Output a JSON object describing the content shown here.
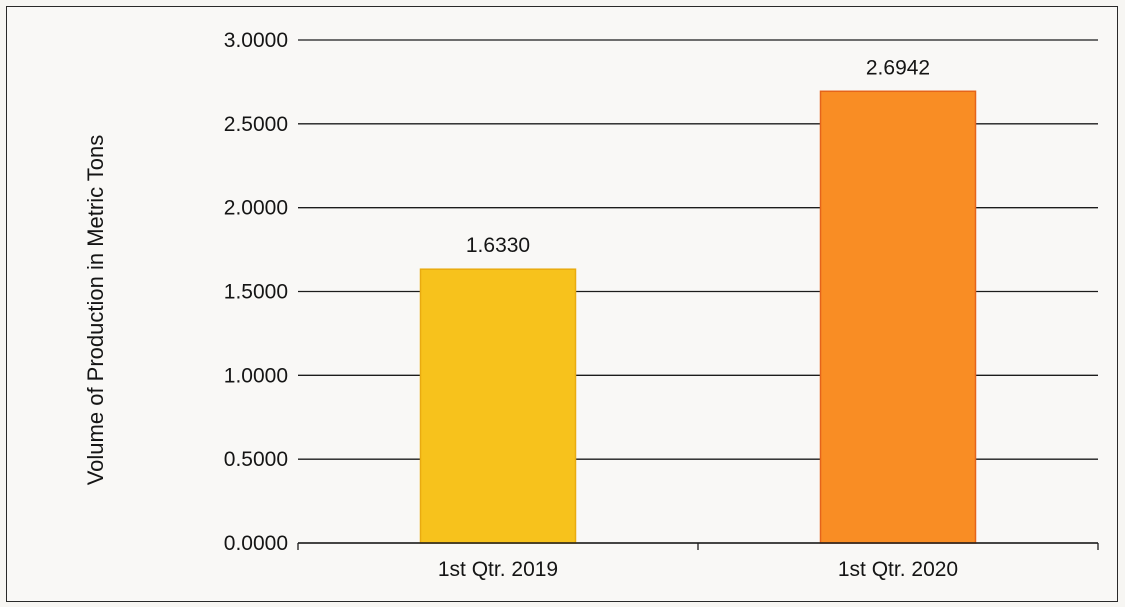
{
  "chart_data": {
    "type": "bar",
    "title": "",
    "xlabel": "",
    "ylabel": "Volume of Production in Metric Tons",
    "categories": [
      "1st Qtr. 2019",
      "1st Qtr. 2020"
    ],
    "values": [
      1.633,
      2.6942
    ],
    "value_labels": [
      "1.6330",
      "2.6942"
    ],
    "bar_colors": [
      "#f7c21c",
      "#f98d24"
    ],
    "ylim": [
      0,
      3
    ],
    "yticks": [
      0,
      0.5,
      1,
      1.5,
      2,
      2.5,
      3
    ],
    "ytick_labels": [
      "0.0000",
      "0.5000",
      "1.0000",
      "1.5000",
      "2.0000",
      "2.5000",
      "3.0000"
    ],
    "grid": true,
    "legend": "none"
  }
}
